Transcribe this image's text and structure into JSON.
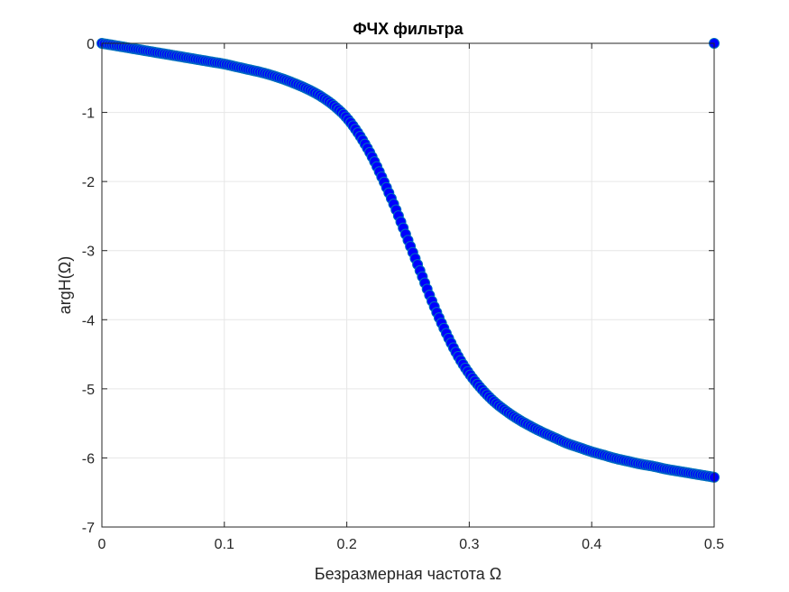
{
  "chart_data": {
    "type": "line",
    "title": "ФЧХ фильтра",
    "xlabel": "Безразмерная частота Ω",
    "ylabel": "argH(Ω)",
    "xlim": [
      0,
      0.5
    ],
    "ylim": [
      -7,
      0
    ],
    "xticks": [
      0,
      0.1,
      0.2,
      0.3,
      0.4,
      0.5
    ],
    "xtick_labels": [
      "0",
      "0.1",
      "0.2",
      "0.3",
      "0.4",
      "0.5"
    ],
    "yticks": [
      0,
      -1,
      -2,
      -3,
      -4,
      -5,
      -6,
      -7
    ],
    "ytick_labels": [
      "0",
      "-1",
      "-2",
      "-3",
      "-4",
      "-5",
      "-6",
      "-7"
    ],
    "grid": true,
    "legend": "none",
    "series": [
      {
        "marker": "circle",
        "line_color": "#0072bd",
        "marker_face_color": "#0000ff",
        "marker_edge_color": "#0072bd",
        "points": [
          [
            0.0,
            0.0
          ],
          [
            0.01,
            -0.03
          ],
          [
            0.02,
            -0.06
          ],
          [
            0.03,
            -0.09
          ],
          [
            0.04,
            -0.12
          ],
          [
            0.05,
            -0.15
          ],
          [
            0.06,
            -0.18
          ],
          [
            0.07,
            -0.21
          ],
          [
            0.08,
            -0.24
          ],
          [
            0.09,
            -0.27
          ],
          [
            0.1,
            -0.3
          ],
          [
            0.11,
            -0.34
          ],
          [
            0.12,
            -0.38
          ],
          [
            0.13,
            -0.42
          ],
          [
            0.14,
            -0.47
          ],
          [
            0.15,
            -0.53
          ],
          [
            0.16,
            -0.6
          ],
          [
            0.17,
            -0.68
          ],
          [
            0.18,
            -0.78
          ],
          [
            0.19,
            -0.91
          ],
          [
            0.2,
            -1.08
          ],
          [
            0.21,
            -1.32
          ],
          [
            0.22,
            -1.62
          ],
          [
            0.23,
            -1.99
          ],
          [
            0.24,
            -2.4
          ],
          [
            0.25,
            -2.85
          ],
          [
            0.26,
            -3.3
          ],
          [
            0.27,
            -3.75
          ],
          [
            0.28,
            -4.15
          ],
          [
            0.29,
            -4.5
          ],
          [
            0.3,
            -4.78
          ],
          [
            0.31,
            -5.0
          ],
          [
            0.32,
            -5.18
          ],
          [
            0.33,
            -5.32
          ],
          [
            0.34,
            -5.44
          ],
          [
            0.35,
            -5.54
          ],
          [
            0.36,
            -5.63
          ],
          [
            0.37,
            -5.71
          ],
          [
            0.38,
            -5.79
          ],
          [
            0.39,
            -5.85
          ],
          [
            0.4,
            -5.91
          ],
          [
            0.41,
            -5.96
          ],
          [
            0.42,
            -6.01
          ],
          [
            0.43,
            -6.05
          ],
          [
            0.44,
            -6.09
          ],
          [
            0.45,
            -6.12
          ],
          [
            0.46,
            -6.16
          ],
          [
            0.47,
            -6.19
          ],
          [
            0.48,
            -6.22
          ],
          [
            0.49,
            -6.25
          ],
          [
            0.497,
            -6.27
          ],
          [
            0.5,
            -6.28
          ],
          [
            0.5,
            0.0
          ]
        ]
      }
    ]
  }
}
